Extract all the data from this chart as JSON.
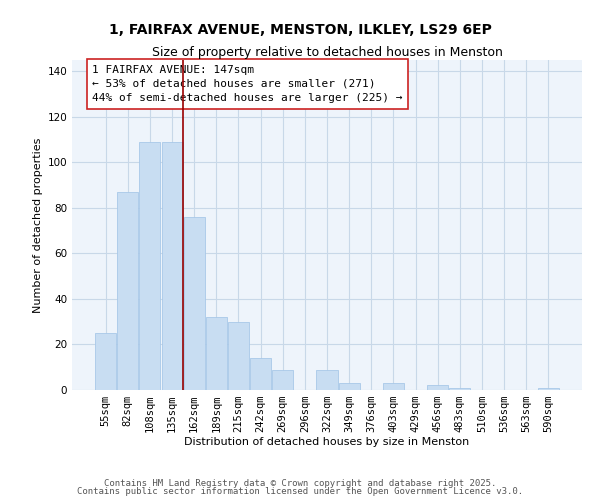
{
  "title": "1, FAIRFAX AVENUE, MENSTON, ILKLEY, LS29 6EP",
  "subtitle": "Size of property relative to detached houses in Menston",
  "xlabel": "Distribution of detached houses by size in Menston",
  "ylabel": "Number of detached properties",
  "bar_color": "#c8ddf2",
  "bar_edge_color": "#a8c8e8",
  "background_color": "#eef4fb",
  "grid_color": "#c8d8e8",
  "categories": [
    "55sqm",
    "82sqm",
    "108sqm",
    "135sqm",
    "162sqm",
    "189sqm",
    "215sqm",
    "242sqm",
    "269sqm",
    "296sqm",
    "322sqm",
    "349sqm",
    "376sqm",
    "403sqm",
    "429sqm",
    "456sqm",
    "483sqm",
    "510sqm",
    "536sqm",
    "563sqm",
    "590sqm"
  ],
  "values": [
    25,
    87,
    109,
    109,
    76,
    32,
    30,
    14,
    9,
    0,
    9,
    3,
    0,
    3,
    0,
    2,
    1,
    0,
    0,
    0,
    1
  ],
  "ylim": [
    0,
    145
  ],
  "yticks": [
    0,
    20,
    40,
    60,
    80,
    100,
    120,
    140
  ],
  "vline_x": 3.5,
  "vline_color": "#990000",
  "annotation_text": "1 FAIRFAX AVENUE: 147sqm\n← 53% of detached houses are smaller (271)\n44% of semi-detached houses are larger (225) →",
  "footer1": "Contains HM Land Registry data © Crown copyright and database right 2025.",
  "footer2": "Contains public sector information licensed under the Open Government Licence v3.0.",
  "title_fontsize": 10,
  "subtitle_fontsize": 9,
  "annotation_fontsize": 8,
  "axis_label_fontsize": 8,
  "tick_fontsize": 7.5,
  "footer_fontsize": 6.5
}
